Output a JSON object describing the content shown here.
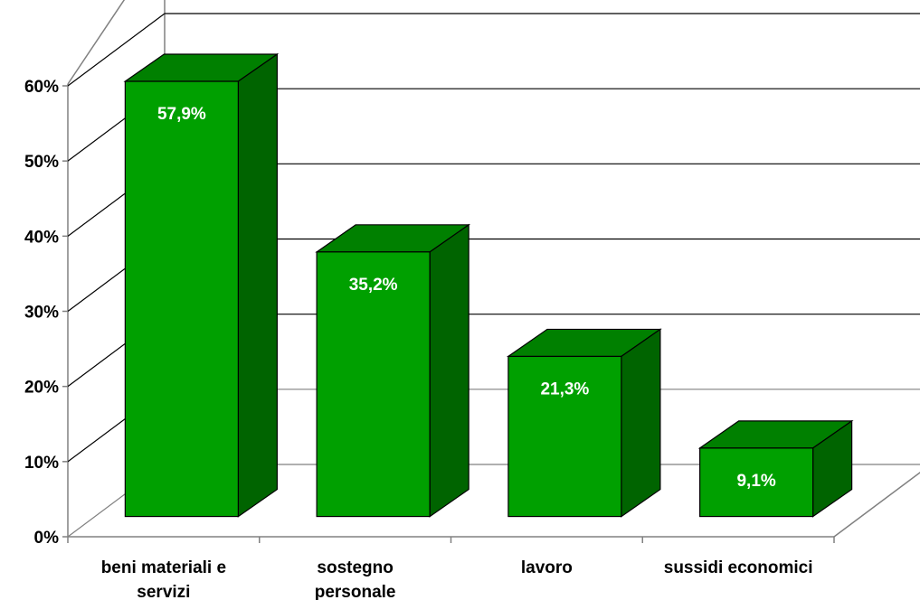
{
  "chart_data": {
    "type": "bar",
    "title": "",
    "xlabel": "",
    "ylabel": "",
    "categories": [
      [
        "beni materiali e",
        "servizi"
      ],
      [
        "sostegno",
        "personale"
      ],
      [
        "lavoro"
      ],
      [
        "sussidi economici"
      ]
    ],
    "values": [
      57.9,
      35.2,
      21.3,
      9.1
    ],
    "data_labels": [
      "57,9%",
      "35,2%",
      "21,3%",
      "9,1%"
    ],
    "ylim": [
      0,
      60
    ],
    "yticks": [
      0,
      10,
      20,
      30,
      40,
      50,
      60
    ],
    "ytick_labels": [
      "0%",
      "10%",
      "20%",
      "30%",
      "40%",
      "50%",
      "60%"
    ],
    "grid": true,
    "legend": "none",
    "style": "3d",
    "colors": {
      "bar_front": "#00A000",
      "bar_top": "#008000",
      "bar_side": "#006400",
      "bar_outline": "#000000",
      "grid": "#000000",
      "wall": "#808080"
    }
  }
}
